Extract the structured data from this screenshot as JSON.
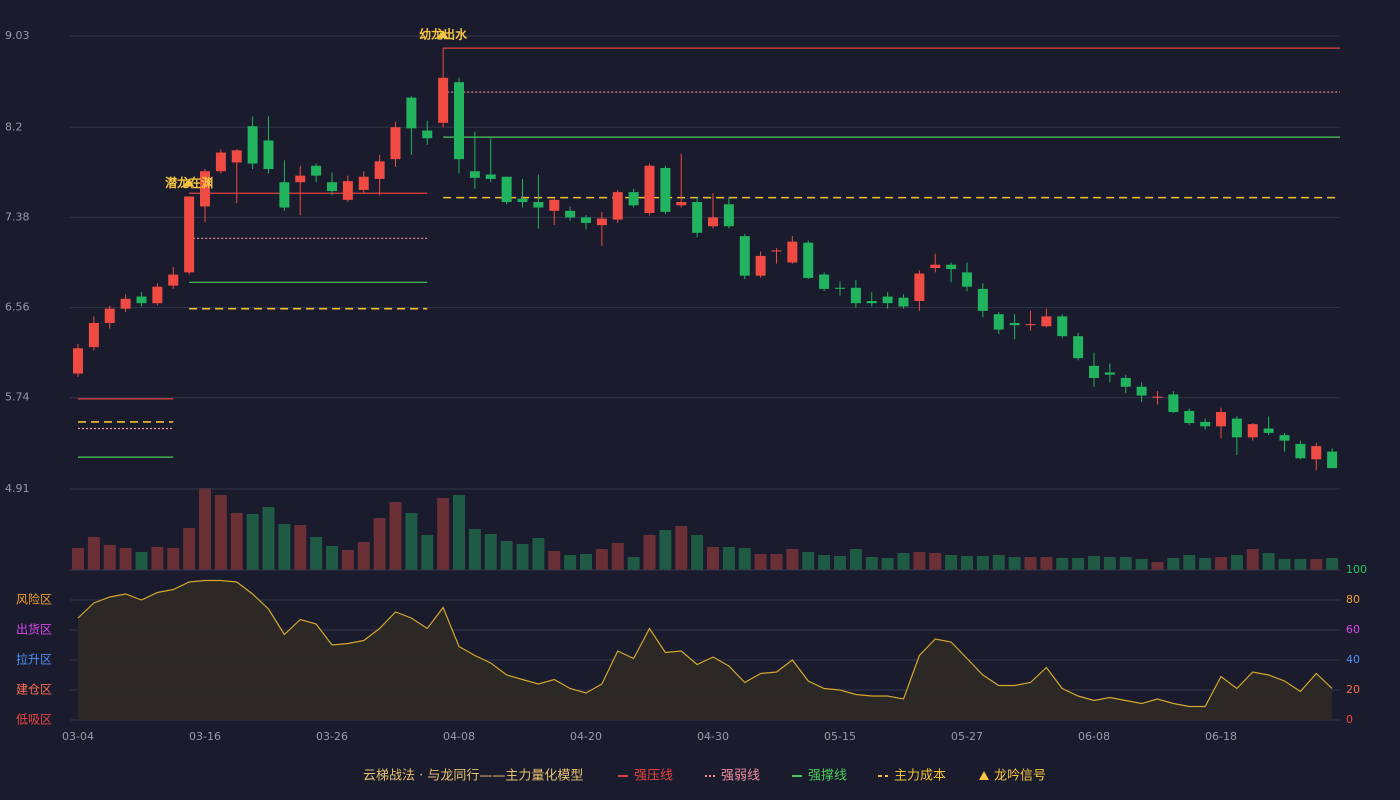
{
  "chart_data": [
    {
      "type": "candlestick",
      "categories": [
        "03-04",
        null,
        null,
        null,
        null,
        null,
        null,
        null,
        "03-16",
        null,
        null,
        null,
        null,
        null,
        null,
        null,
        "03-26",
        null,
        null,
        null,
        null,
        null,
        null,
        null,
        "04-08",
        null,
        null,
        null,
        null,
        null,
        null,
        null,
        "04-20",
        null,
        null,
        null,
        null,
        null,
        null,
        null,
        "04-30",
        null,
        null,
        null,
        null,
        null,
        null,
        null,
        "05-15",
        null,
        null,
        null,
        null,
        null,
        null,
        null,
        "05-27",
        null,
        null,
        null,
        null,
        null,
        null,
        null,
        "06-08",
        null,
        null,
        null,
        null,
        null,
        null,
        null,
        "06-18",
        null,
        null,
        null,
        null,
        null,
        null,
        null
      ],
      "open": [
        5.96,
        6.2,
        6.42,
        6.55,
        6.66,
        6.6,
        6.76,
        6.88,
        7.48,
        7.8,
        7.88,
        8.21,
        8.08,
        7.7,
        7.7,
        7.85,
        7.7,
        7.54,
        7.63,
        7.73,
        7.91,
        8.47,
        8.17,
        8.24,
        8.61,
        7.8,
        7.77,
        7.75,
        7.55,
        7.52,
        7.44,
        7.44,
        7.38,
        7.31,
        7.36,
        7.61,
        7.42,
        7.83,
        7.49,
        7.52,
        7.3,
        7.5,
        7.21,
        6.85,
        7.07,
        6.97,
        7.15,
        6.86,
        6.74,
        6.74,
        6.62,
        6.66,
        6.65,
        6.62,
        6.92,
        6.95,
        6.88,
        6.73,
        6.5,
        6.42,
        6.4,
        6.39,
        6.48,
        6.3,
        6.03,
        5.97,
        5.92,
        5.84,
        5.74,
        5.77,
        5.62,
        5.52,
        5.48,
        5.55,
        5.38,
        5.46,
        5.4,
        5.32,
        5.18,
        5.25
      ],
      "close": [
        6.19,
        6.42,
        6.55,
        6.64,
        6.6,
        6.75,
        6.86,
        7.57,
        7.8,
        7.97,
        7.99,
        7.87,
        7.82,
        7.47,
        7.76,
        7.76,
        7.62,
        7.71,
        7.75,
        7.89,
        8.2,
        8.19,
        8.1,
        8.65,
        7.91,
        7.74,
        7.73,
        7.52,
        7.52,
        7.47,
        7.54,
        7.38,
        7.33,
        7.37,
        7.61,
        7.49,
        7.85,
        7.43,
        7.52,
        7.24,
        7.38,
        7.3,
        6.85,
        7.03,
        7.08,
        7.16,
        6.83,
        6.73,
        6.73,
        6.6,
        6.6,
        6.6,
        6.57,
        6.87,
        6.95,
        6.91,
        6.75,
        6.53,
        6.36,
        6.4,
        6.41,
        6.48,
        6.3,
        6.1,
        5.92,
        5.95,
        5.84,
        5.76,
        5.75,
        5.61,
        5.51,
        5.48,
        5.61,
        5.38,
        5.5,
        5.42,
        5.35,
        5.19,
        5.3,
        5.1
      ],
      "high": [
        6.23,
        6.48,
        6.58,
        6.68,
        6.7,
        6.78,
        6.93,
        7.57,
        7.82,
        8.0,
        8.0,
        8.3,
        8.3,
        7.9,
        7.85,
        7.87,
        7.79,
        7.76,
        7.8,
        7.95,
        8.25,
        8.48,
        8.26,
        8.92,
        8.65,
        8.16,
        8.1,
        7.75,
        7.73,
        7.77,
        7.55,
        7.48,
        7.4,
        7.43,
        7.63,
        7.64,
        7.87,
        7.85,
        7.96,
        7.57,
        7.6,
        7.57,
        7.23,
        7.07,
        7.1,
        7.21,
        7.17,
        6.88,
        6.8,
        6.81,
        6.7,
        6.7,
        6.68,
        6.9,
        7.05,
        6.97,
        6.97,
        6.78,
        6.52,
        6.5,
        6.53,
        6.55,
        6.5,
        6.33,
        6.15,
        6.05,
        5.95,
        5.88,
        5.8,
        5.8,
        5.64,
        5.55,
        5.65,
        5.57,
        5.51,
        5.57,
        5.42,
        5.35,
        5.33,
        5.28
      ],
      "low": [
        5.93,
        6.17,
        6.37,
        6.52,
        6.57,
        6.58,
        6.73,
        6.86,
        7.34,
        7.78,
        7.51,
        7.82,
        7.78,
        7.44,
        7.4,
        7.7,
        7.58,
        7.52,
        7.6,
        7.58,
        7.84,
        7.95,
        8.04,
        8.2,
        7.78,
        7.64,
        7.7,
        7.5,
        7.47,
        7.28,
        7.31,
        7.35,
        7.27,
        7.12,
        7.33,
        7.47,
        7.4,
        7.41,
        7.47,
        7.2,
        7.28,
        7.28,
        6.82,
        6.83,
        6.96,
        6.96,
        6.82,
        6.71,
        6.67,
        6.56,
        6.57,
        6.55,
        6.55,
        6.53,
        6.88,
        6.79,
        6.71,
        6.47,
        6.32,
        6.27,
        6.35,
        6.38,
        6.28,
        6.08,
        5.84,
        5.88,
        5.78,
        5.7,
        5.68,
        5.6,
        5.49,
        5.45,
        5.37,
        5.22,
        5.35,
        5.4,
        5.25,
        5.18,
        5.08,
        5.1
      ],
      "up_color": "#ef4b43",
      "down_color": "#22b35e",
      "ylim": [
        4.91,
        9.03
      ],
      "yticks": [
        4.91,
        5.74,
        6.56,
        7.38,
        8.2,
        9.03
      ],
      "grid": true,
      "lines": [
        {
          "name": "强压线",
          "color": "#e0443f",
          "style": "solid",
          "segments": [
            {
              "start": 0,
              "end": 6,
              "value": 5.73
            },
            {
              "start": 7,
              "end": 22,
              "value": 7.6
            },
            {
              "start": 23,
              "end": 79,
              "value": 8.92
            }
          ]
        },
        {
          "name": "强弱线",
          "color": "#f08fa0",
          "style": "dotted",
          "segments": [
            {
              "start": 0,
              "end": 6,
              "value": 5.46
            },
            {
              "start": 7,
              "end": 22,
              "value": 7.19
            },
            {
              "start": 23,
              "end": 79,
              "value": 8.52
            }
          ]
        },
        {
          "name": "强撑线",
          "color": "#4cc95a",
          "style": "solid",
          "segments": [
            {
              "start": 0,
              "end": 6,
              "value": 5.2
            },
            {
              "start": 7,
              "end": 22,
              "value": 6.79
            },
            {
              "start": 23,
              "end": 79,
              "value": 8.11
            }
          ]
        },
        {
          "name": "主力成本",
          "color": "#f0c030",
          "style": "dashed",
          "segments": [
            {
              "start": 0,
              "end": 6,
              "value": 5.52
            },
            {
              "start": 7,
              "end": 22,
              "value": 6.55
            },
            {
              "start": 23,
              "end": 79,
              "value": 7.56
            }
          ]
        }
      ],
      "signals": {
        "name": "龙吟信号",
        "color": "#f5c542",
        "points": [
          {
            "index": 7,
            "label": "潜龙在渊"
          },
          {
            "index": 23,
            "label": "幼龙出水"
          }
        ]
      }
    },
    {
      "type": "bar",
      "values": [
        22,
        33,
        25,
        22,
        18,
        23,
        22,
        42,
        82,
        75,
        57,
        56,
        63,
        46,
        45,
        33,
        24,
        20,
        28,
        52,
        68,
        57,
        35,
        72,
        75,
        41,
        36,
        29,
        26,
        32,
        19,
        15,
        16,
        21,
        27,
        13,
        35,
        40,
        44,
        35,
        23,
        23,
        22,
        16,
        16,
        21,
        18,
        15,
        14,
        21,
        13,
        12,
        17,
        18,
        17,
        15,
        14,
        14,
        15,
        13,
        13,
        13,
        12,
        12,
        14,
        13,
        13,
        11,
        8,
        12,
        15,
        12,
        13,
        15,
        21,
        17,
        11,
        11,
        11,
        12
      ],
      "up_color": "#6b2f36",
      "down_color": "#1f5a44"
    },
    {
      "type": "line",
      "values": [
        68,
        78,
        82,
        84,
        80,
        85,
        87,
        92,
        93,
        93,
        92,
        84,
        74,
        57,
        67,
        64,
        50,
        51,
        53,
        61,
        72,
        68,
        61,
        75,
        49,
        43,
        38,
        30,
        27,
        24,
        27,
        21,
        18,
        24,
        46,
        41,
        61,
        45,
        46,
        37,
        42,
        36,
        25,
        31,
        32,
        40,
        26,
        21,
        20,
        17,
        16,
        16,
        14,
        43,
        54,
        52,
        41,
        30,
        23,
        23,
        25,
        35,
        21,
        16,
        13,
        15,
        13,
        11,
        14,
        11,
        9,
        9,
        29,
        21,
        32,
        30,
        26,
        19,
        31,
        21
      ],
      "color": "#d4a72c",
      "fill": "#2e2a25",
      "ylim": [
        0,
        100
      ],
      "yticks": [
        0,
        20,
        40,
        60,
        80,
        100
      ],
      "ytick_colors": [
        "#ef4444",
        "#f97050",
        "#4f8ff7",
        "#d946ef",
        "#f0a030",
        "#22c55e"
      ],
      "zones": [
        {
          "label": "风险区",
          "value": 80,
          "color": "#f0a030"
        },
        {
          "label": "出货区",
          "value": 60,
          "color": "#d946ef"
        },
        {
          "label": "拉升区",
          "value": 40,
          "color": "#4f8ff7"
        },
        {
          "label": "建仓区",
          "value": 20,
          "color": "#f97050"
        },
        {
          "label": "低吸区",
          "value": 0,
          "color": "#ef4444"
        }
      ]
    }
  ],
  "legend_title": "云梯战法 · 与龙同行——主力量化模型"
}
